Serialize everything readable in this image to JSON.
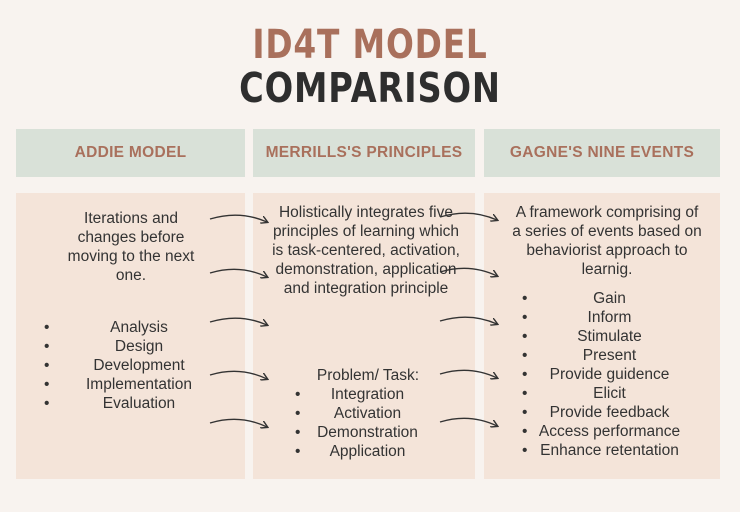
{
  "title": {
    "line1": "ID4T MODEL",
    "line2": "COMPARISON"
  },
  "columns": [
    {
      "header": "ADDIE MODEL",
      "intro": "Iterations and changes before moving to the next one.",
      "items": [
        "Analysis",
        "Design",
        "Development",
        "Implementation",
        "Evaluation"
      ]
    },
    {
      "header": "MERRILLS'S PRINCIPLES",
      "intro": "Holistically integrates five principles of learning which is task-centered, activation, demonstration, application and integration principle",
      "sub_heading": "Problem/ Task:",
      "items": [
        "Integration",
        "Activation",
        "Demonstration",
        "Application"
      ]
    },
    {
      "header": "GAGNE'S NINE EVENTS",
      "intro": "A framework comprising of a series of events based on behaviorist approach to learnig.",
      "items": [
        "Gain",
        "Inform",
        "Stimulate",
        "Present",
        "Provide guidence",
        "Elicit",
        "Provide feedback",
        "Access performance",
        "Enhance retentation"
      ]
    }
  ],
  "colors": {
    "background": "#f8f3ef",
    "header_bg": "#d9e1d8",
    "panel_bg": "#f4e4d9",
    "accent": "#a9705c",
    "text": "#333333",
    "title_dark": "#2e2e2e"
  }
}
